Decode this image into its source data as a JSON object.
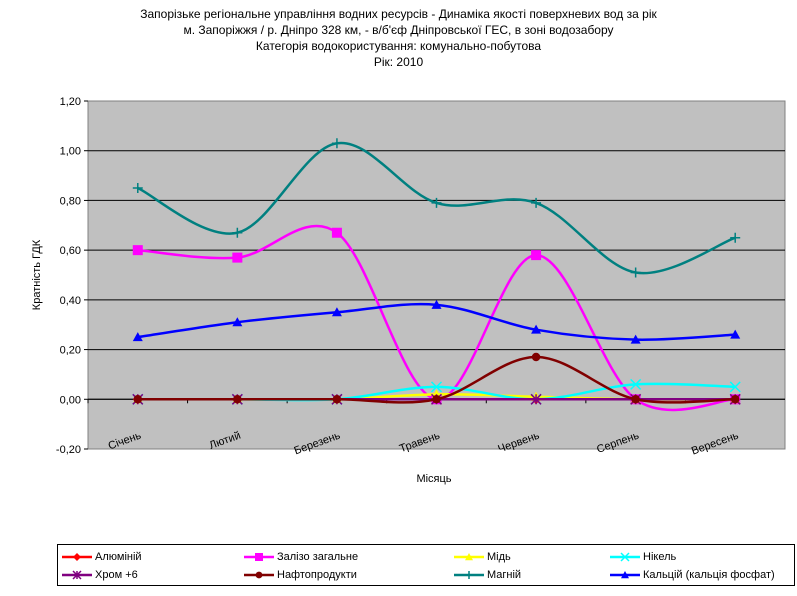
{
  "title_lines": [
    "Запорізьке регіональне управління водних ресурсів - Динаміка якості поверхневих вод за рік",
    "м. Запоріжжя / р. Дніпро 328 км, - в/б'єф Дніпровської ГЕС, в зоні водозабору",
    "Категорія водокористування: комунально-побутова",
    "Рік: 2010"
  ],
  "chart_data": {
    "type": "line",
    "smooth": true,
    "categories": [
      "Січень",
      "Лютий",
      "Березень",
      "Травень",
      "Червень",
      "Серпень",
      "Вересень"
    ],
    "xlabel": "Місяць",
    "ylabel": "Кратність ГДК",
    "ylim": [
      -0.2,
      1.2
    ],
    "yticks": [
      -0.2,
      0.0,
      0.2,
      0.4,
      0.6,
      0.8,
      1.0,
      1.2
    ],
    "ytick_labels": [
      "-0,20",
      "0,00",
      "0,20",
      "0,40",
      "0,60",
      "0,80",
      "1,00",
      "1,20"
    ],
    "plot_background": "#c0c0c0",
    "grid": "horizontal",
    "legend_position": "bottom",
    "series": [
      {
        "name": "Алюміній",
        "color": "#ff0000",
        "marker": "diamond",
        "values": [
          0,
          0,
          0,
          0,
          0,
          0,
          0
        ]
      },
      {
        "name": "Залізо загальне",
        "color": "#ff00ff",
        "marker": "square",
        "values": [
          0.6,
          0.57,
          0.67,
          0,
          0.58,
          0,
          0
        ]
      },
      {
        "name": "Мідь",
        "color": "#ffff00",
        "marker": "triangle",
        "values": [
          0,
          0,
          0,
          0.02,
          0.01,
          0,
          0
        ]
      },
      {
        "name": "Нікель",
        "color": "#00ffff",
        "marker": "x",
        "values": [
          0,
          0,
          0,
          0.05,
          0,
          0.06,
          0.05
        ]
      },
      {
        "name": "Хром +6",
        "color": "#800080",
        "marker": "star",
        "values": [
          0,
          0,
          0,
          0,
          0,
          0,
          0
        ]
      },
      {
        "name": "Нафтопродукти",
        "color": "#800000",
        "marker": "circle",
        "values": [
          0,
          0,
          0,
          0,
          0.17,
          0,
          0
        ]
      },
      {
        "name": "Магній",
        "color": "#008080",
        "marker": "plus",
        "values": [
          0.85,
          0.67,
          1.03,
          0.79,
          0.79,
          0.51,
          0.65
        ]
      },
      {
        "name": "Кальцій (кальція фосфат)",
        "color": "#0000ff",
        "marker": "triangle",
        "values": [
          0.25,
          0.31,
          0.35,
          0.38,
          0.28,
          0.24,
          0.26
        ]
      }
    ]
  }
}
